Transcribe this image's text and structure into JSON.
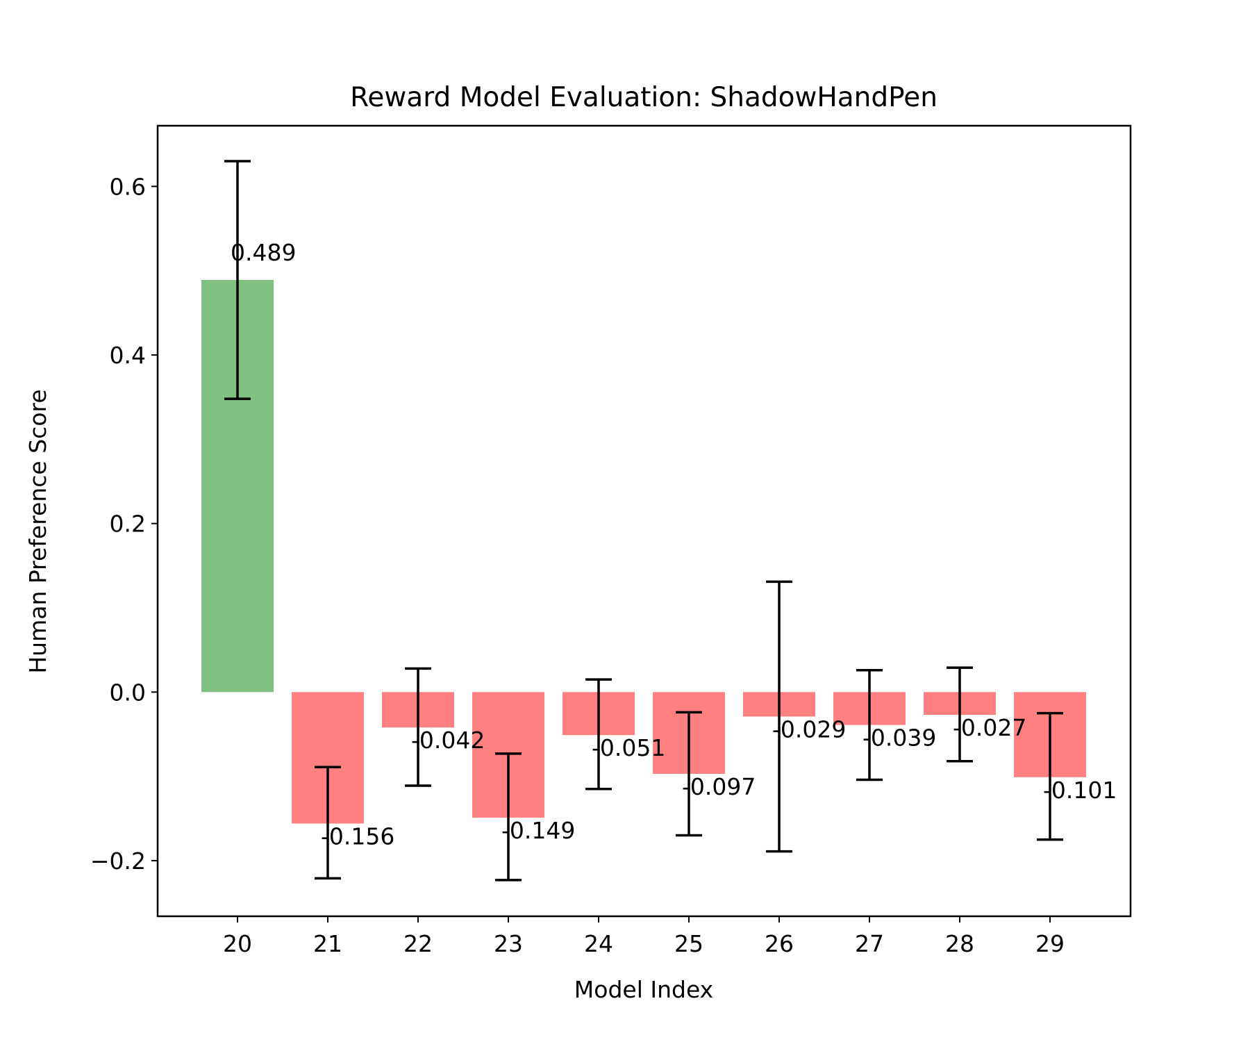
{
  "chart_data": {
    "type": "bar",
    "title": "Reward Model Evaluation: ShadowHandPen",
    "xlabel": "Model Index",
    "ylabel": "Human Preference Score",
    "categories": [
      "20",
      "21",
      "22",
      "23",
      "24",
      "25",
      "26",
      "27",
      "28",
      "29"
    ],
    "values": [
      0.489,
      -0.156,
      -0.042,
      -0.149,
      -0.051,
      -0.097,
      -0.029,
      -0.039,
      -0.027,
      -0.101
    ],
    "value_labels": [
      "0.489",
      "-0.156",
      "-0.042",
      "-0.149",
      "-0.051",
      "-0.097",
      "-0.029",
      "-0.039",
      "-0.027",
      "-0.101"
    ],
    "error_low": [
      0.348,
      -0.221,
      -0.111,
      -0.223,
      -0.115,
      -0.17,
      -0.189,
      -0.104,
      -0.082,
      -0.175
    ],
    "error_high": [
      0.63,
      -0.089,
      0.028,
      -0.073,
      0.015,
      -0.024,
      0.131,
      0.026,
      0.029,
      -0.025
    ],
    "ylim": [
      -0.266,
      0.672
    ],
    "yticks": [
      -0.2,
      0.0,
      0.2,
      0.4,
      0.6
    ],
    "ytick_labels": [
      "−0.2",
      "0.0",
      "0.2",
      "0.4",
      "0.6"
    ],
    "grid": false,
    "colors": {
      "positive": "#80c080",
      "negative": "#ff8080",
      "error_bar": "#000000",
      "axis": "#000000"
    }
  }
}
